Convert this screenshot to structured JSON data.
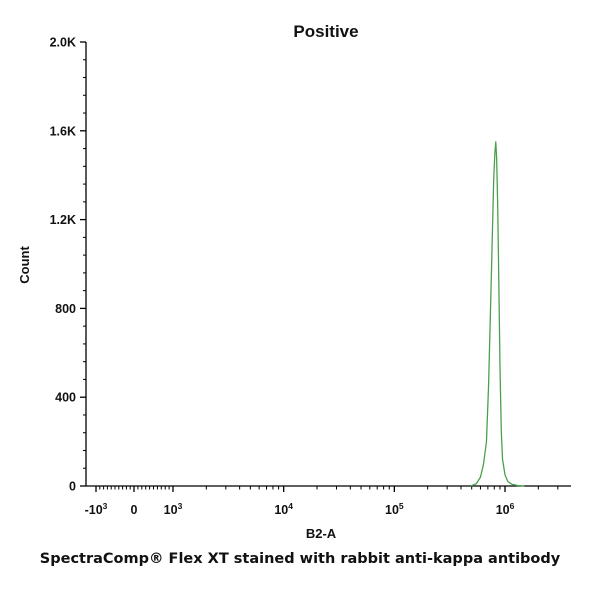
{
  "chart_data": {
    "type": "line",
    "title": "Positive",
    "xlabel": "B2-A",
    "ylabel": "Count",
    "x_scale": "biexponential",
    "xlim": [
      -1500,
      4000000
    ],
    "ylim": [
      0,
      2000
    ],
    "x_ticks": [
      {
        "value": -1000,
        "base": "-10",
        "exp": "3"
      },
      {
        "value": 0,
        "base": "0",
        "exp": ""
      },
      {
        "value": 1000,
        "base": "10",
        "exp": "3"
      },
      {
        "value": 10000,
        "base": "10",
        "exp": "4"
      },
      {
        "value": 100000,
        "base": "10",
        "exp": "5"
      },
      {
        "value": 1000000,
        "base": "10",
        "exp": "6"
      }
    ],
    "y_ticks": [
      {
        "value": 0,
        "label": "0"
      },
      {
        "value": 400,
        "label": "400"
      },
      {
        "value": 800,
        "label": "800"
      },
      {
        "value": 1200,
        "label": "1.2K"
      },
      {
        "value": 1600,
        "label": "1.6K"
      },
      {
        "value": 2000,
        "label": "2.0K"
      }
    ],
    "grid": false,
    "series": [
      {
        "color": "#4aa04a",
        "x": [
          490000,
          550000,
          600000,
          640000,
          680000,
          710000,
          740000,
          770000,
          790000,
          810000,
          825000,
          840000,
          860000,
          880000,
          900000,
          925000,
          950000,
          1000000,
          1060000,
          1150000,
          1300000,
          1500000
        ],
        "y": [
          0,
          10,
          40,
          100,
          200,
          450,
          800,
          1150,
          1380,
          1500,
          1550,
          1480,
          1250,
          900,
          550,
          250,
          120,
          50,
          20,
          8,
          2,
          0
        ]
      }
    ]
  },
  "caption": "SpectraComp® Flex XT stained with rabbit anti-kappa antibody"
}
